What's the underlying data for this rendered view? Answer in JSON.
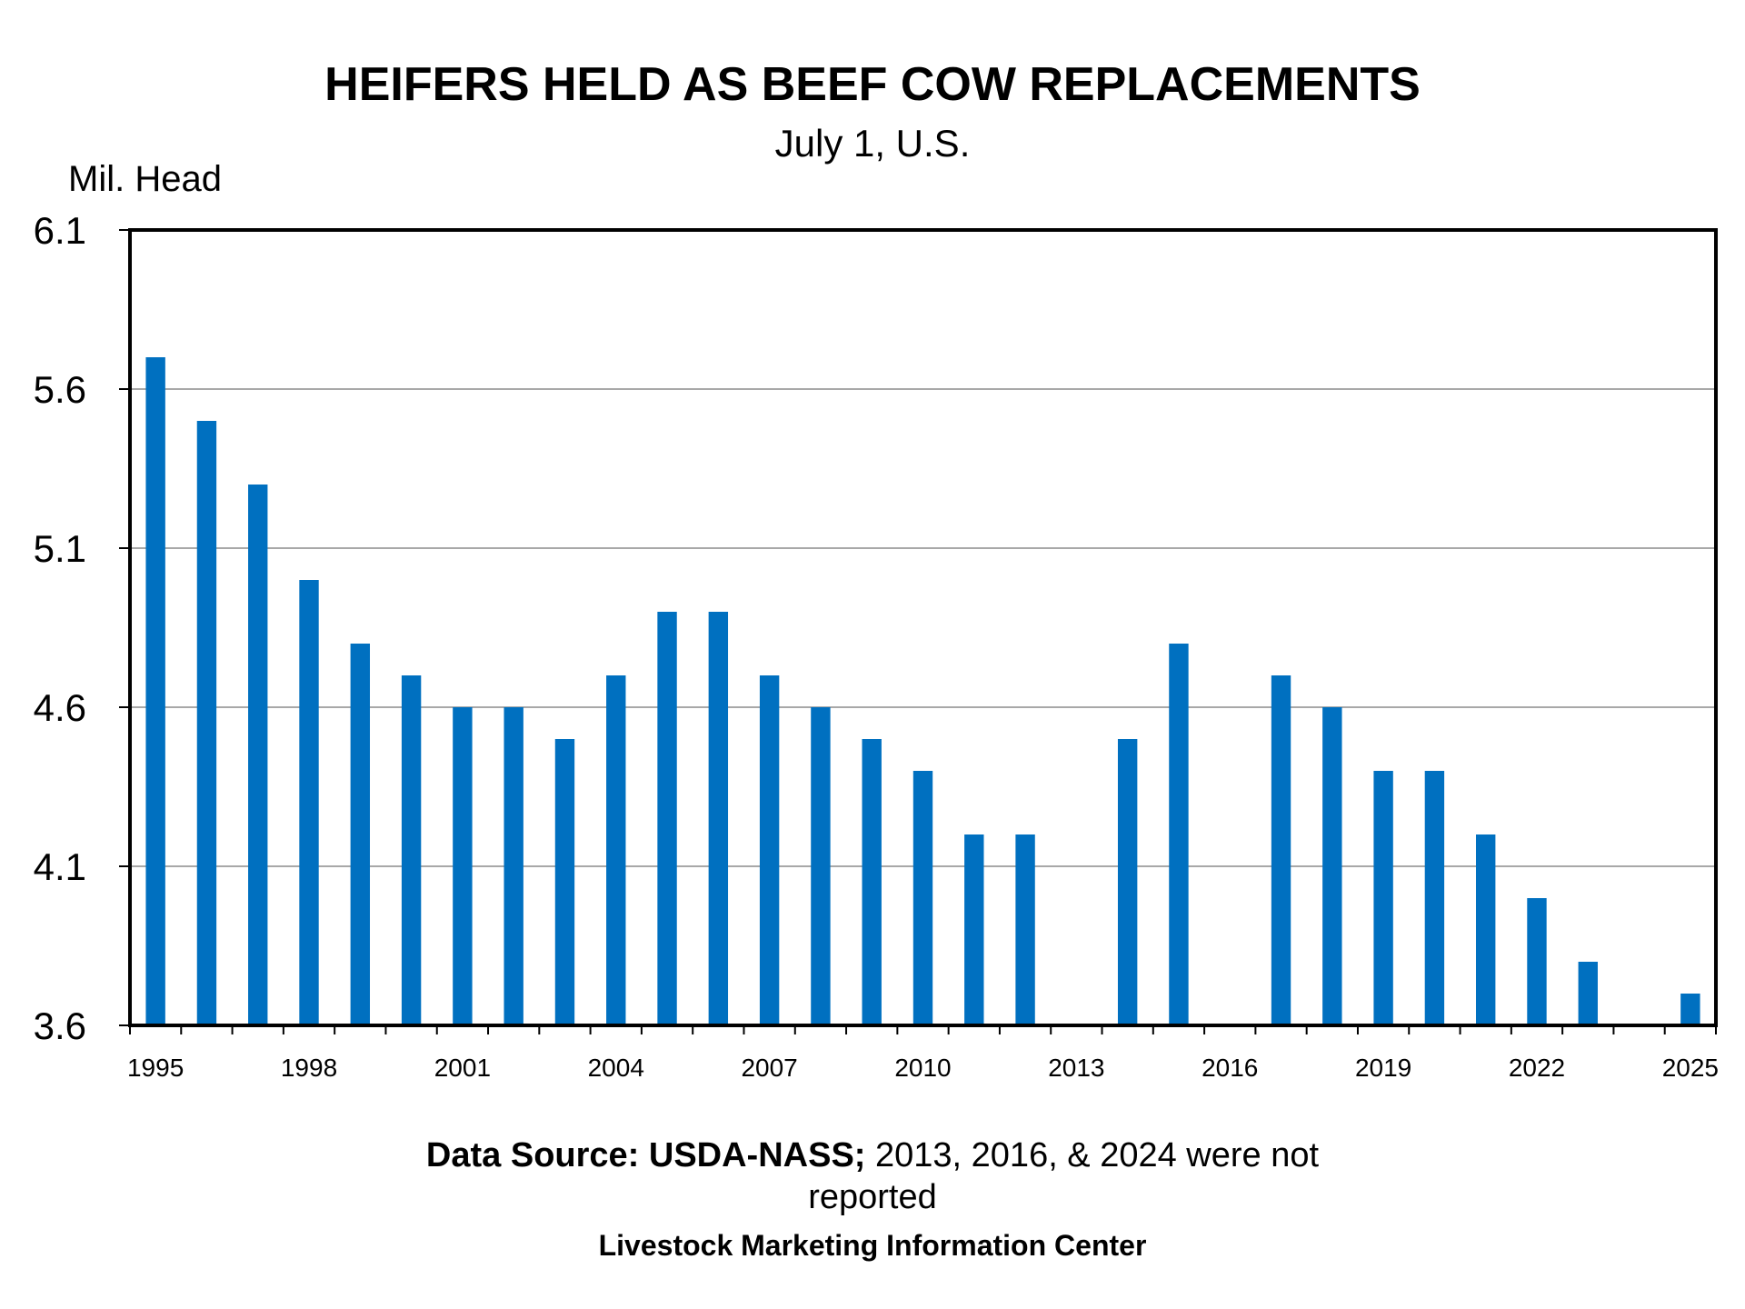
{
  "chart_data": {
    "type": "bar",
    "title": "HEIFERS HELD AS BEEF COW REPLACEMENTS",
    "subtitle": "July 1, U.S.",
    "ylabel": "Mil. Head",
    "xlabel": "",
    "ylim": [
      3.6,
      6.1
    ],
    "yticks": [
      "3.6",
      "4.1",
      "4.6",
      "5.1",
      "5.6",
      "6.1"
    ],
    "xtick_labels": [
      "1995",
      "1998",
      "2001",
      "2004",
      "2007",
      "2010",
      "2013",
      "2016",
      "2019",
      "2022",
      "2025"
    ],
    "grid": true,
    "legend": "none",
    "bar_color": "#0070c0",
    "categories": [
      "1995",
      "1996",
      "1997",
      "1998",
      "1999",
      "2000",
      "2001",
      "2002",
      "2003",
      "2004",
      "2005",
      "2006",
      "2007",
      "2008",
      "2009",
      "2010",
      "2011",
      "2012",
      "2013",
      "2014",
      "2015",
      "2016",
      "2017",
      "2018",
      "2019",
      "2020",
      "2021",
      "2022",
      "2023",
      "2024",
      "2025"
    ],
    "values": [
      5.7,
      5.5,
      5.3,
      5.0,
      4.8,
      4.7,
      4.6,
      4.6,
      4.5,
      4.7,
      4.9,
      4.9,
      4.7,
      4.6,
      4.5,
      4.4,
      4.2,
      4.2,
      null,
      4.5,
      4.8,
      null,
      4.7,
      4.6,
      4.4,
      4.4,
      4.2,
      4.0,
      3.8,
      null,
      3.7
    ]
  },
  "footer": {
    "source_bold": "Data Source:  USDA-NASS;",
    "source_note": " 2013, 2016, & 2024 were not",
    "source_note_2": "reported",
    "org": "Livestock Marketing Information Center"
  }
}
